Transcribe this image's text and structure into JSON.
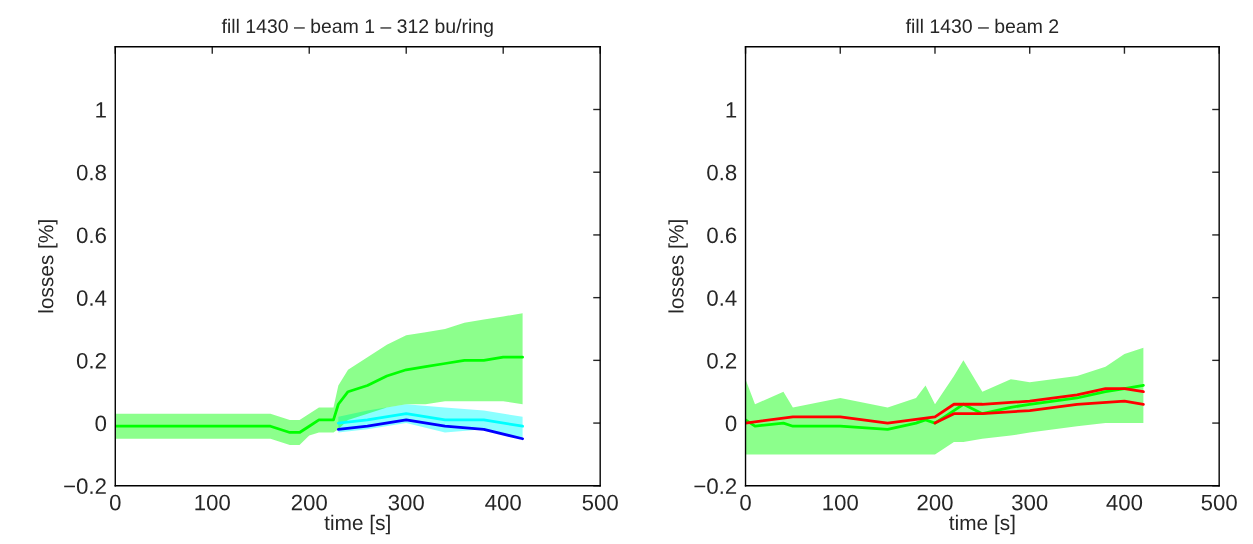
{
  "chart_data": [
    {
      "type": "line",
      "title": "fill 1430 – beam 1 – 312 bu/ring",
      "xlabel": "time [s]",
      "ylabel": "losses [%]",
      "xlim": [
        0,
        500
      ],
      "ylim": [
        -0.2,
        1.2
      ],
      "xticks": [
        0,
        100,
        200,
        300,
        400,
        500
      ],
      "yticks": [
        {
          "value": -0.2,
          "label": "−0.2"
        },
        0,
        0.2,
        0.4,
        0.6,
        0.8,
        1
      ],
      "grid": false,
      "legend": false,
      "series": [
        {
          "color": "#00ffff",
          "x": [
            230,
            260,
            300,
            340,
            380,
            420
          ],
          "values": [
            0,
            0.01,
            0.03,
            0.01,
            0.01,
            -0.01
          ],
          "lower": [
            -0.03,
            -0.02,
            0.0,
            -0.03,
            -0.02,
            -0.05
          ],
          "upper": [
            0.02,
            0.04,
            0.06,
            0.05,
            0.04,
            0.02
          ]
        },
        {
          "color": "#0000ff",
          "x": [
            230,
            260,
            300,
            340,
            380,
            420
          ],
          "values": [
            -0.02,
            -0.01,
            0.01,
            -0.01,
            -0.02,
            -0.05
          ]
        },
        {
          "color": "#00ff00",
          "x": [
            0,
            20,
            40,
            60,
            80,
            100,
            120,
            140,
            160,
            180,
            190,
            200,
            210,
            225,
            230,
            240,
            260,
            280,
            300,
            320,
            340,
            360,
            380,
            400,
            420
          ],
          "values": [
            -0.01,
            -0.01,
            -0.01,
            -0.01,
            -0.01,
            -0.01,
            -0.01,
            -0.01,
            -0.01,
            -0.03,
            -0.03,
            -0.01,
            0.01,
            0.01,
            0.06,
            0.1,
            0.12,
            0.15,
            0.17,
            0.18,
            0.19,
            0.2,
            0.2,
            0.21,
            0.21
          ],
          "lower": [
            -0.05,
            -0.05,
            -0.05,
            -0.05,
            -0.05,
            -0.05,
            -0.05,
            -0.05,
            -0.05,
            -0.07,
            -0.07,
            -0.04,
            -0.03,
            -0.03,
            -0.02,
            0.01,
            0.03,
            0.05,
            0.06,
            0.06,
            0.07,
            0.07,
            0.07,
            0.07,
            0.06
          ],
          "upper": [
            0.03,
            0.03,
            0.03,
            0.03,
            0.03,
            0.03,
            0.03,
            0.03,
            0.03,
            0.01,
            0.01,
            0.03,
            0.05,
            0.05,
            0.12,
            0.17,
            0.21,
            0.25,
            0.28,
            0.29,
            0.3,
            0.32,
            0.33,
            0.34,
            0.35
          ]
        }
      ]
    },
    {
      "type": "line",
      "title": "fill 1430 – beam 2",
      "xlabel": "time [s]",
      "ylabel": "losses [%]",
      "xlim": [
        0,
        500
      ],
      "ylim": [
        -0.2,
        1.2
      ],
      "xticks": [
        0,
        100,
        200,
        300,
        400,
        500
      ],
      "yticks": [
        {
          "value": -0.2,
          "label": "−0.2"
        },
        0,
        0.2,
        0.4,
        0.6,
        0.8,
        1
      ],
      "grid": false,
      "legend": false,
      "series": [
        {
          "color": "#00ff00",
          "x": [
            0,
            10,
            40,
            50,
            100,
            150,
            180,
            190,
            200,
            220,
            230,
            250,
            280,
            300,
            350,
            380,
            400,
            420
          ],
          "values": [
            0.01,
            -0.01,
            0.0,
            -0.01,
            -0.01,
            -0.02,
            0.0,
            0.01,
            0.0,
            0.04,
            0.06,
            0.03,
            0.05,
            0.06,
            0.08,
            0.1,
            0.11,
            0.12
          ],
          "lower": [
            -0.1,
            -0.1,
            -0.1,
            -0.1,
            -0.1,
            -0.1,
            -0.1,
            -0.1,
            -0.1,
            -0.06,
            -0.06,
            -0.05,
            -0.04,
            -0.03,
            -0.01,
            0.0,
            0.0,
            0.0
          ],
          "upper": [
            0.14,
            0.06,
            0.1,
            0.05,
            0.08,
            0.05,
            0.08,
            0.12,
            0.06,
            0.15,
            0.2,
            0.1,
            0.14,
            0.13,
            0.15,
            0.18,
            0.22,
            0.24
          ]
        },
        {
          "color": "#ff0000",
          "x": [
            0,
            50,
            100,
            150,
            200,
            220,
            250,
            300,
            350,
            380,
            400,
            420
          ],
          "values": [
            0.0,
            0.02,
            0.02,
            0.0,
            0.02,
            0.06,
            0.06,
            0.07,
            0.09,
            0.11,
            0.11,
            0.1
          ]
        },
        {
          "color": "#ff0000",
          "x": [
            200,
            220,
            250,
            300,
            350,
            400,
            420
          ],
          "values": [
            0.0,
            0.03,
            0.03,
            0.04,
            0.06,
            0.07,
            0.06
          ]
        }
      ]
    }
  ]
}
